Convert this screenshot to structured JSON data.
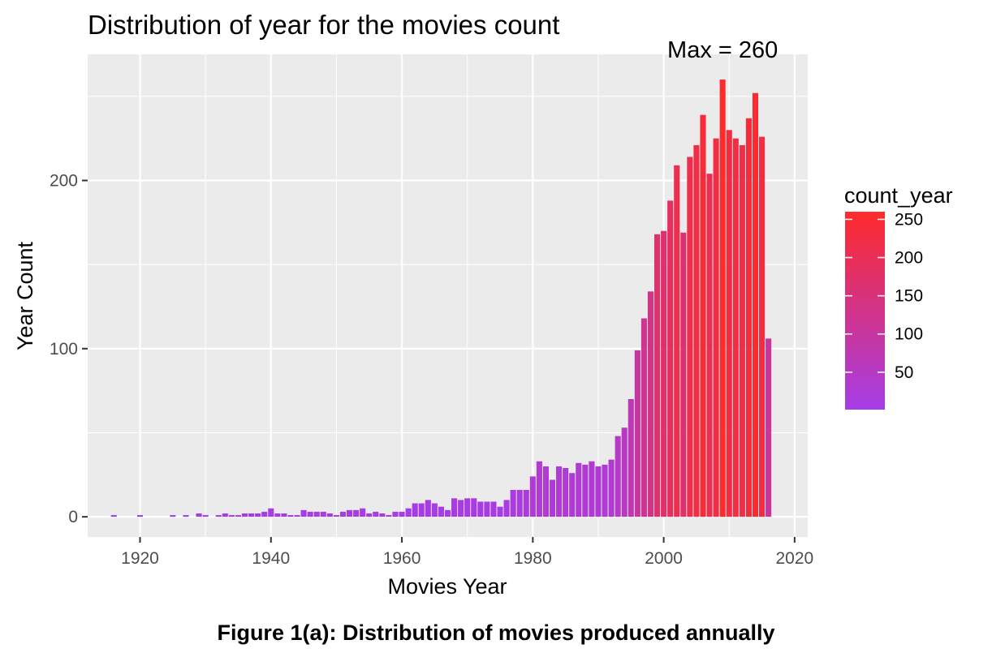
{
  "caption": "Figure 1(a): Distribution of movies produced annually",
  "chart_data": {
    "type": "bar",
    "title": "Distribution of year for the movies count",
    "xlabel": "Movies Year",
    "ylabel": "Year Count",
    "xlim": [
      1912,
      2022
    ],
    "ylim": [
      -12,
      275
    ],
    "xticks": [
      1920,
      1940,
      1960,
      1980,
      2000,
      2020
    ],
    "yticks": [
      0,
      100,
      200
    ],
    "grid": true,
    "background": "#ebebeb",
    "annotation": {
      "text": "Max = 260",
      "x": 2009,
      "y": 278
    },
    "legend": {
      "title": "count_year",
      "placement": "right",
      "ticks": [
        50,
        100,
        150,
        200,
        250
      ],
      "range": [
        1,
        260
      ],
      "color_low": "#a53de8",
      "color_high": "#ff2a2a"
    },
    "x": [
      1916,
      1920,
      1925,
      1927,
      1929,
      1930,
      1932,
      1933,
      1934,
      1935,
      1936,
      1937,
      1938,
      1939,
      1940,
      1941,
      1942,
      1943,
      1944,
      1945,
      1946,
      1947,
      1948,
      1949,
      1950,
      1951,
      1952,
      1953,
      1954,
      1955,
      1956,
      1957,
      1958,
      1959,
      1960,
      1961,
      1962,
      1963,
      1964,
      1965,
      1966,
      1967,
      1968,
      1969,
      1970,
      1971,
      1972,
      1973,
      1974,
      1975,
      1976,
      1977,
      1978,
      1979,
      1980,
      1981,
      1982,
      1983,
      1984,
      1985,
      1986,
      1987,
      1988,
      1989,
      1990,
      1991,
      1992,
      1993,
      1994,
      1995,
      1996,
      1997,
      1998,
      1999,
      2000,
      2001,
      2002,
      2003,
      2004,
      2005,
      2006,
      2007,
      2008,
      2009,
      2010,
      2011,
      2012,
      2013,
      2014,
      2015,
      2016
    ],
    "values": [
      1,
      1,
      1,
      1,
      2,
      1,
      1,
      2,
      1,
      1,
      2,
      2,
      2,
      3,
      5,
      2,
      2,
      1,
      1,
      4,
      3,
      3,
      3,
      2,
      1,
      3,
      4,
      4,
      5,
      2,
      3,
      2,
      1,
      3,
      3,
      5,
      8,
      8,
      10,
      8,
      6,
      4,
      11,
      10,
      11,
      11,
      9,
      9,
      9,
      6,
      10,
      16,
      16,
      16,
      24,
      33,
      30,
      22,
      30,
      29,
      26,
      32,
      31,
      33,
      30,
      31,
      34,
      48,
      53,
      70,
      99,
      118,
      134,
      168,
      170,
      188,
      209,
      169,
      214,
      221,
      239,
      204,
      225,
      260,
      230,
      225,
      221,
      237,
      252,
      226,
      106
    ]
  }
}
